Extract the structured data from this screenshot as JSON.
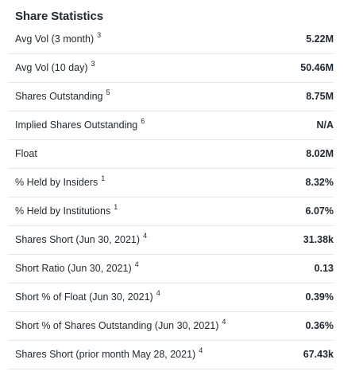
{
  "section": {
    "title": "Share Statistics"
  },
  "rows": [
    {
      "label": "Avg Vol (3 month)",
      "note": "3",
      "value": "5.22M"
    },
    {
      "label": "Avg Vol (10 day)",
      "note": "3",
      "value": "50.46M"
    },
    {
      "label": "Shares Outstanding",
      "note": "5",
      "value": "8.75M"
    },
    {
      "label": "Implied Shares Outstanding",
      "note": "6",
      "value": "N/A"
    },
    {
      "label": "Float",
      "note": "",
      "value": "8.02M"
    },
    {
      "label": "% Held by Insiders",
      "note": "1",
      "value": "8.32%"
    },
    {
      "label": "% Held by Institutions",
      "note": "1",
      "value": "6.07%"
    },
    {
      "label": "Shares Short (Jun 30, 2021)",
      "note": "4",
      "value": "31.38k"
    },
    {
      "label": "Short Ratio (Jun 30, 2021)",
      "note": "4",
      "value": "0.13"
    },
    {
      "label": "Short % of Float (Jun 30, 2021)",
      "note": "4",
      "value": "0.39%"
    },
    {
      "label": "Short % of Shares Outstanding (Jun 30, 2021)",
      "note": "4",
      "value": "0.36%"
    },
    {
      "label": "Shares Short (prior month May 28, 2021)",
      "note": "4",
      "value": "67.43k"
    }
  ]
}
